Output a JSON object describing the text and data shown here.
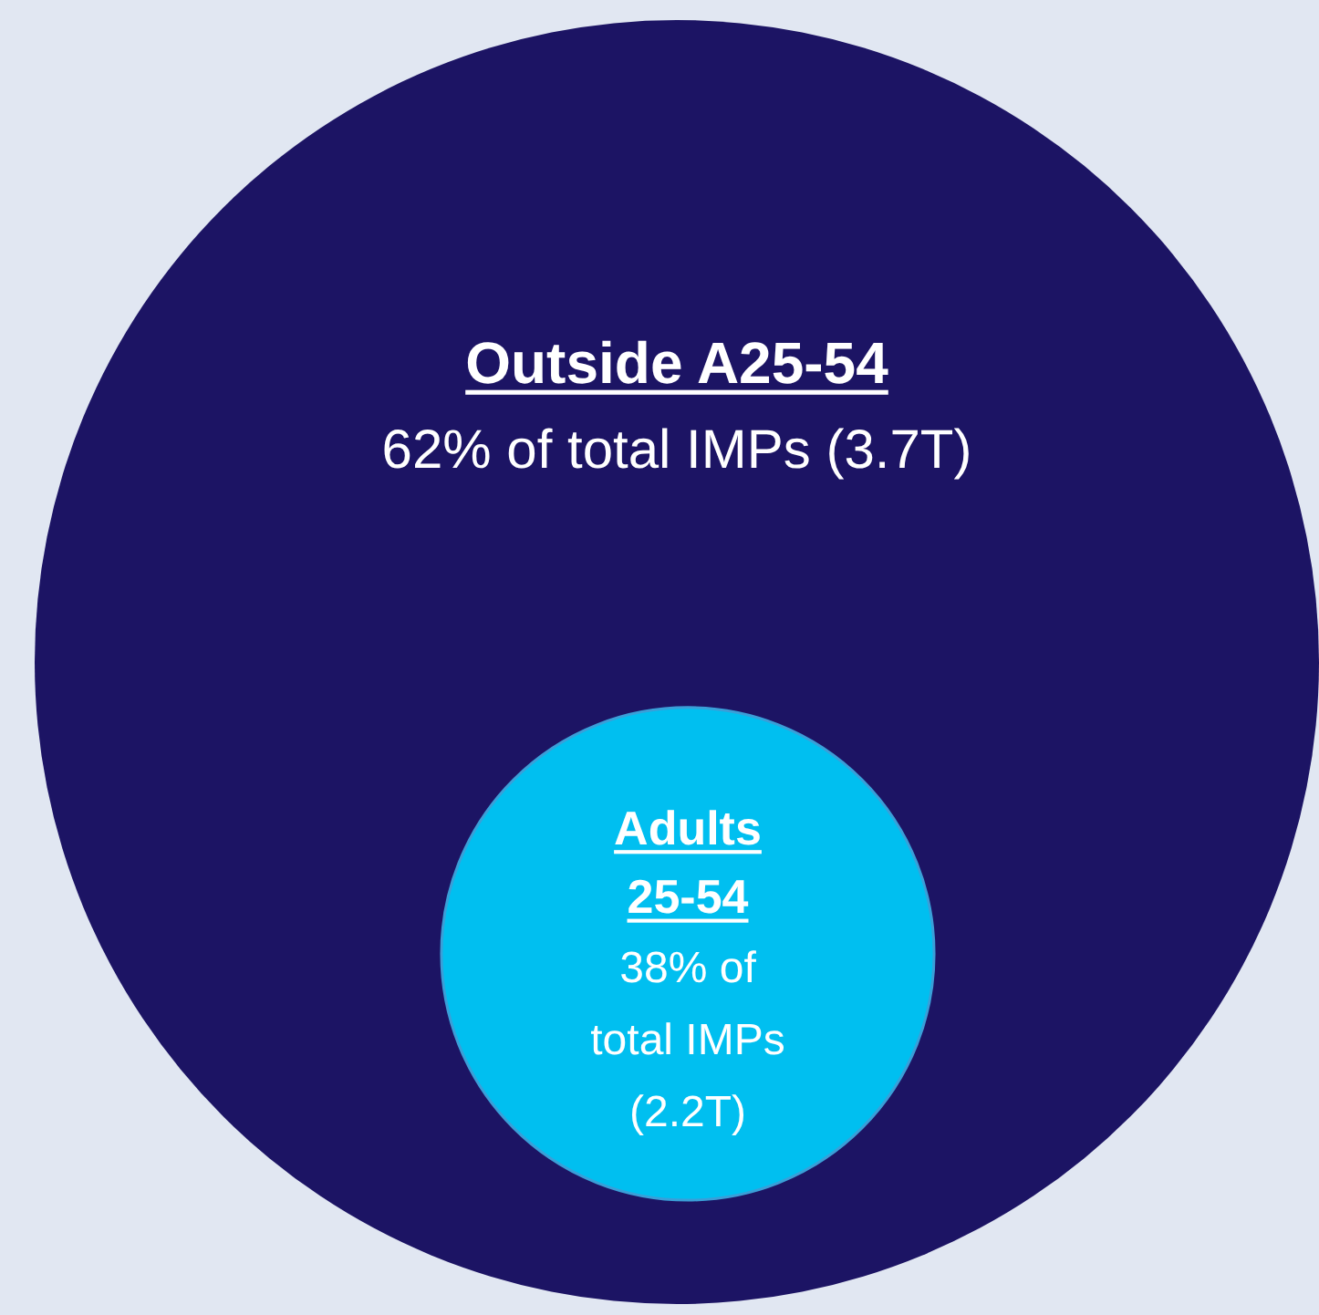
{
  "chart_data": {
    "type": "other",
    "categories": [
      "Outside A25-54",
      "Adults 25-54"
    ],
    "values": [
      62,
      38
    ],
    "value_labels": [
      "62% of total IMPs (3.7T)",
      "38% of total IMPs (2.2T)"
    ],
    "colors": [
      "#1c1464",
      "#00bff0"
    ]
  }
}
